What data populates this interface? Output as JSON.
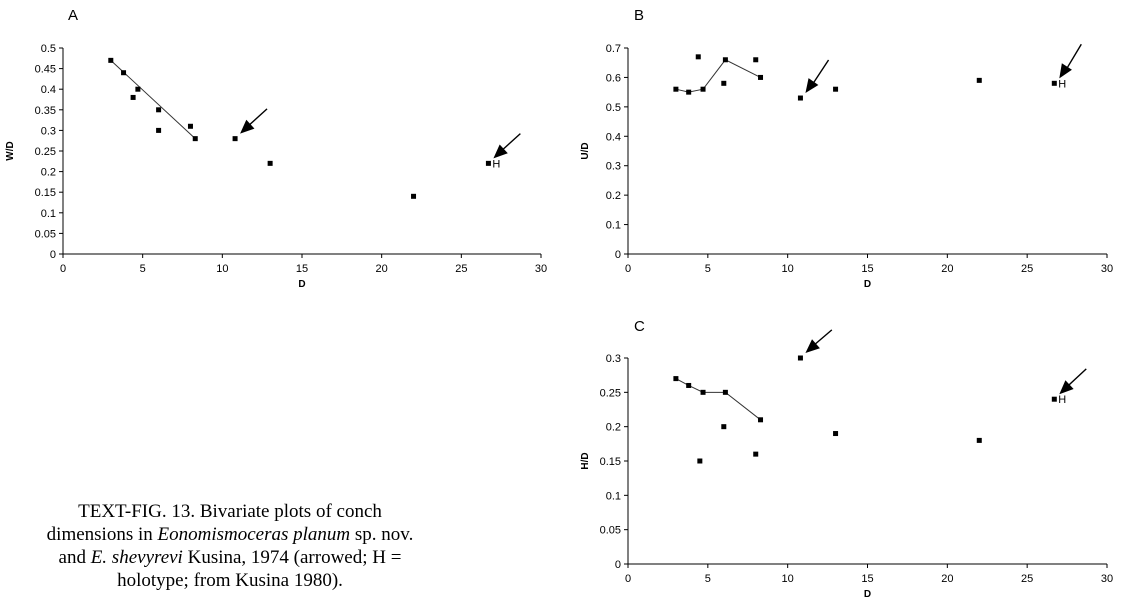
{
  "chart_data": [
    {
      "type": "scatter",
      "panel_label": "A",
      "xlabel": "D",
      "ylabel": "W/D",
      "xlim": [
        0,
        30
      ],
      "ylim": [
        0,
        0.5
      ],
      "xticks": [
        0,
        5,
        10,
        15,
        20,
        25,
        30
      ],
      "yticks": [
        0,
        0.05,
        0.1,
        0.15,
        0.2,
        0.25,
        0.3,
        0.35,
        0.4,
        0.45,
        0.5
      ],
      "ytick_labels": [
        "0",
        "0.05",
        "0.1",
        "0.15",
        "0.2",
        "0.25",
        "0.3",
        "0.35",
        "0.4",
        "0.45",
        "0.5"
      ],
      "points": [
        {
          "x": 3.0,
          "y": 0.47
        },
        {
          "x": 3.8,
          "y": 0.44
        },
        {
          "x": 4.4,
          "y": 0.38
        },
        {
          "x": 4.7,
          "y": 0.4
        },
        {
          "x": 6.0,
          "y": 0.35
        },
        {
          "x": 6.0,
          "y": 0.3
        },
        {
          "x": 8.0,
          "y": 0.31
        },
        {
          "x": 8.3,
          "y": 0.28
        },
        {
          "x": 10.8,
          "y": 0.28
        },
        {
          "x": 13.0,
          "y": 0.22
        },
        {
          "x": 22.0,
          "y": 0.14
        },
        {
          "x": 26.7,
          "y": 0.22
        }
      ],
      "trend_line": [
        {
          "x": 3.0,
          "y": 0.47
        },
        {
          "x": 8.3,
          "y": 0.28
        }
      ],
      "arrowed": [
        {
          "x": 10.8,
          "y": 0.28
        },
        {
          "x": 26.7,
          "y": 0.22
        }
      ],
      "holotype": {
        "x": 26.7,
        "y": 0.22,
        "label": "H"
      }
    },
    {
      "type": "scatter",
      "panel_label": "B",
      "xlabel": "D",
      "ylabel": "U/D",
      "xlim": [
        0,
        30
      ],
      "ylim": [
        0,
        0.7
      ],
      "xticks": [
        0,
        5,
        10,
        15,
        20,
        25,
        30
      ],
      "yticks": [
        0,
        0.1,
        0.2,
        0.3,
        0.4,
        0.5,
        0.6,
        0.7
      ],
      "ytick_labels": [
        "0",
        "0.1",
        "0.2",
        "0.3",
        "0.4",
        "0.5",
        "0.6",
        "0.7"
      ],
      "points": [
        {
          "x": 3.0,
          "y": 0.56
        },
        {
          "x": 3.8,
          "y": 0.55
        },
        {
          "x": 4.4,
          "y": 0.67
        },
        {
          "x": 4.7,
          "y": 0.56
        },
        {
          "x": 6.0,
          "y": 0.58
        },
        {
          "x": 6.1,
          "y": 0.66
        },
        {
          "x": 8.0,
          "y": 0.66
        },
        {
          "x": 8.3,
          "y": 0.6
        },
        {
          "x": 10.8,
          "y": 0.53
        },
        {
          "x": 13.0,
          "y": 0.56
        },
        {
          "x": 22.0,
          "y": 0.59
        },
        {
          "x": 26.7,
          "y": 0.58
        }
      ],
      "trend_line": [
        {
          "x": 3.0,
          "y": 0.56
        },
        {
          "x": 3.8,
          "y": 0.55
        },
        {
          "x": 4.7,
          "y": 0.56
        },
        {
          "x": 6.1,
          "y": 0.66
        },
        {
          "x": 8.3,
          "y": 0.6
        }
      ],
      "arrowed": [
        {
          "x": 10.8,
          "y": 0.53
        },
        {
          "x": 26.7,
          "y": 0.58
        }
      ],
      "holotype": {
        "x": 26.7,
        "y": 0.58,
        "label": "H"
      }
    },
    {
      "type": "scatter",
      "panel_label": "C",
      "xlabel": "D",
      "ylabel": "H/D",
      "xlim": [
        0,
        30
      ],
      "ylim": [
        0,
        0.3
      ],
      "xticks": [
        0,
        5,
        10,
        15,
        20,
        25,
        30
      ],
      "yticks": [
        0,
        0.05,
        0.1,
        0.15,
        0.2,
        0.25,
        0.3
      ],
      "ytick_labels": [
        "0",
        "0.05",
        "0.1",
        "0.15",
        "0.2",
        "0.25",
        "0.3"
      ],
      "points": [
        {
          "x": 3.0,
          "y": 0.27
        },
        {
          "x": 3.8,
          "y": 0.26
        },
        {
          "x": 4.5,
          "y": 0.15
        },
        {
          "x": 4.7,
          "y": 0.25
        },
        {
          "x": 6.0,
          "y": 0.2
        },
        {
          "x": 6.1,
          "y": 0.25
        },
        {
          "x": 8.0,
          "y": 0.16
        },
        {
          "x": 8.3,
          "y": 0.21
        },
        {
          "x": 10.8,
          "y": 0.3
        },
        {
          "x": 13.0,
          "y": 0.19
        },
        {
          "x": 22.0,
          "y": 0.18
        },
        {
          "x": 26.7,
          "y": 0.24
        }
      ],
      "trend_line": [
        {
          "x": 3.0,
          "y": 0.27
        },
        {
          "x": 3.8,
          "y": 0.26
        },
        {
          "x": 4.7,
          "y": 0.25
        },
        {
          "x": 6.1,
          "y": 0.25
        },
        {
          "x": 8.3,
          "y": 0.21
        }
      ],
      "arrowed": [
        {
          "x": 10.8,
          "y": 0.3
        },
        {
          "x": 26.7,
          "y": 0.24
        }
      ],
      "holotype": {
        "x": 26.7,
        "y": 0.24,
        "label": "H"
      }
    }
  ],
  "caption": {
    "prefix": "TEXT-FIG. 13.",
    "text_1": " Bivariate plots of conch dimensions in ",
    "taxon_1": "Eonomismoceras planum",
    "text_2": " sp. nov. and ",
    "taxon_2": "E. shevyrevi",
    "text_3": " Kusina, 1974 (arrowed; H = holotype; from Kusina 1980)."
  }
}
